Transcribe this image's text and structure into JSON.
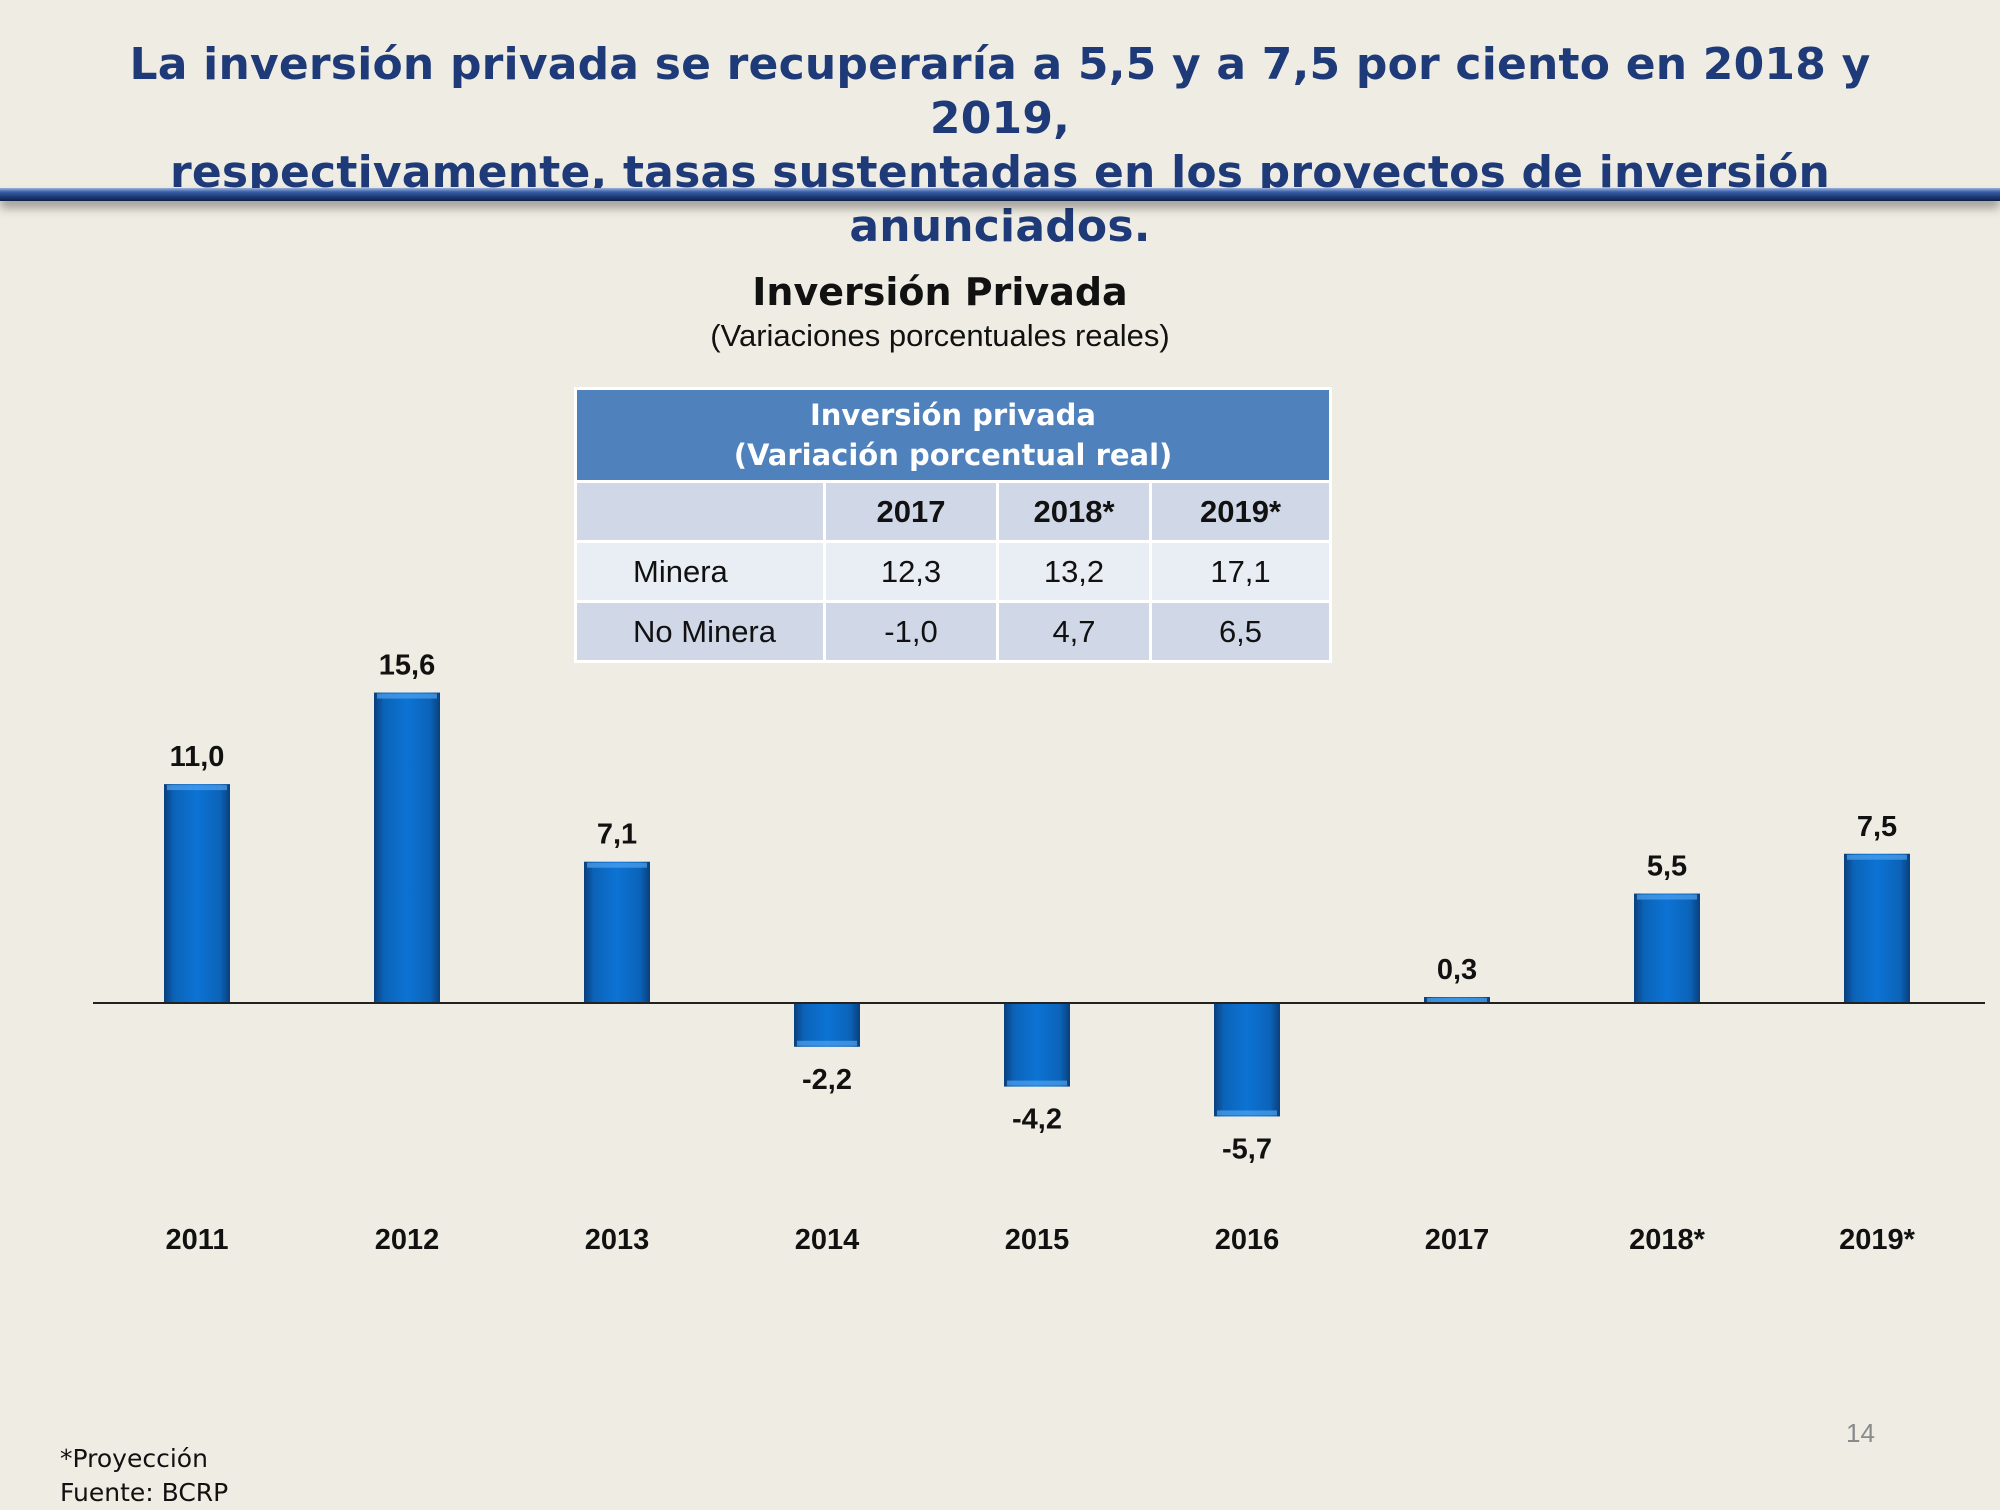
{
  "headline": {
    "line1": "La inversión privada se recuperaría a 5,5 y a 7,5 por ciento en 2018 y 2019,",
    "line2": "respectivamente, tasas sustentadas en los proyectos de inversión anunciados."
  },
  "table": {
    "header_line1": "Inversión privada",
    "header_line2": "(Variación porcentual real)",
    "columns": [
      "2017",
      "2018*",
      "2019*"
    ],
    "rows": [
      {
        "label": "Minera",
        "values": [
          "12,3",
          "13,2",
          "17,1"
        ]
      },
      {
        "label": "No Minera",
        "values": [
          "-1,0",
          "4,7",
          "6,5"
        ]
      }
    ]
  },
  "chart_data": {
    "type": "bar",
    "title": "Inversión Privada",
    "subtitle": "(Variaciones porcentuales reales)",
    "categories": [
      "2011",
      "2012",
      "2013",
      "2014",
      "2015",
      "2016",
      "2017",
      "2018*",
      "2019*"
    ],
    "values": [
      11.0,
      15.6,
      7.1,
      -2.2,
      -4.2,
      -5.7,
      0.3,
      5.5,
      7.5
    ],
    "value_labels": [
      "11,0",
      "15,6",
      "7,1",
      "-2,2",
      "-4,2",
      "-5,7",
      "0,3",
      "5,5",
      "7,5"
    ],
    "xlabel": "",
    "ylabel": "",
    "grid": false,
    "bar_color": "#0b6bc4"
  },
  "page_number": "14",
  "footnotes": {
    "projection": "*Proyección",
    "source": "Fuente: BCRP"
  }
}
